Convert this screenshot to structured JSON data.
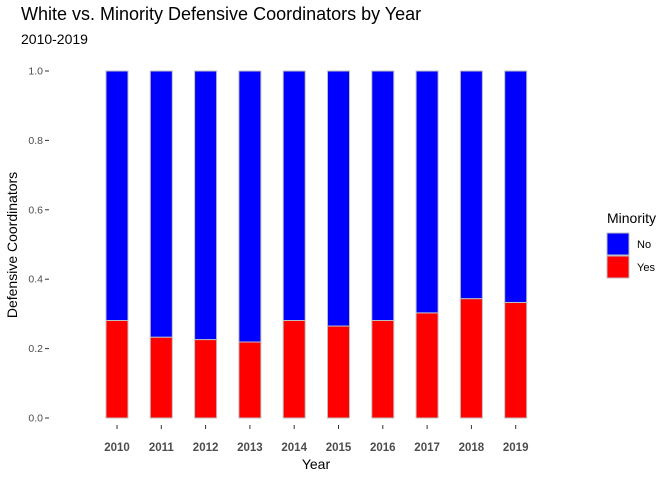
{
  "chart_data": {
    "type": "bar",
    "stacked": true,
    "title": "White vs. Minority Defensive Coordinators by Year",
    "subtitle": "2010-2019",
    "xlabel": "Year",
    "ylabel": "Defensive Coordinators",
    "ylim": [
      0,
      1
    ],
    "yticks": [
      "0.0",
      "0.2",
      "0.4",
      "0.6",
      "0.8",
      "1.0"
    ],
    "categories": [
      "2010",
      "2011",
      "2012",
      "2013",
      "2014",
      "2015",
      "2016",
      "2017",
      "2018",
      "2019"
    ],
    "series": [
      {
        "name": "No",
        "color": "#0000ff",
        "values": [
          0.719,
          0.767,
          0.774,
          0.781,
          0.719,
          0.735,
          0.719,
          0.697,
          0.656,
          0.667
        ]
      },
      {
        "name": "Yes",
        "color": "#ff0000",
        "values": [
          0.281,
          0.233,
          0.226,
          0.219,
          0.281,
          0.265,
          0.281,
          0.303,
          0.344,
          0.333
        ]
      }
    ],
    "legend": {
      "title": "Minority",
      "position": "right"
    },
    "grid": false,
    "bar_outline_color": "#bfbfbf"
  }
}
